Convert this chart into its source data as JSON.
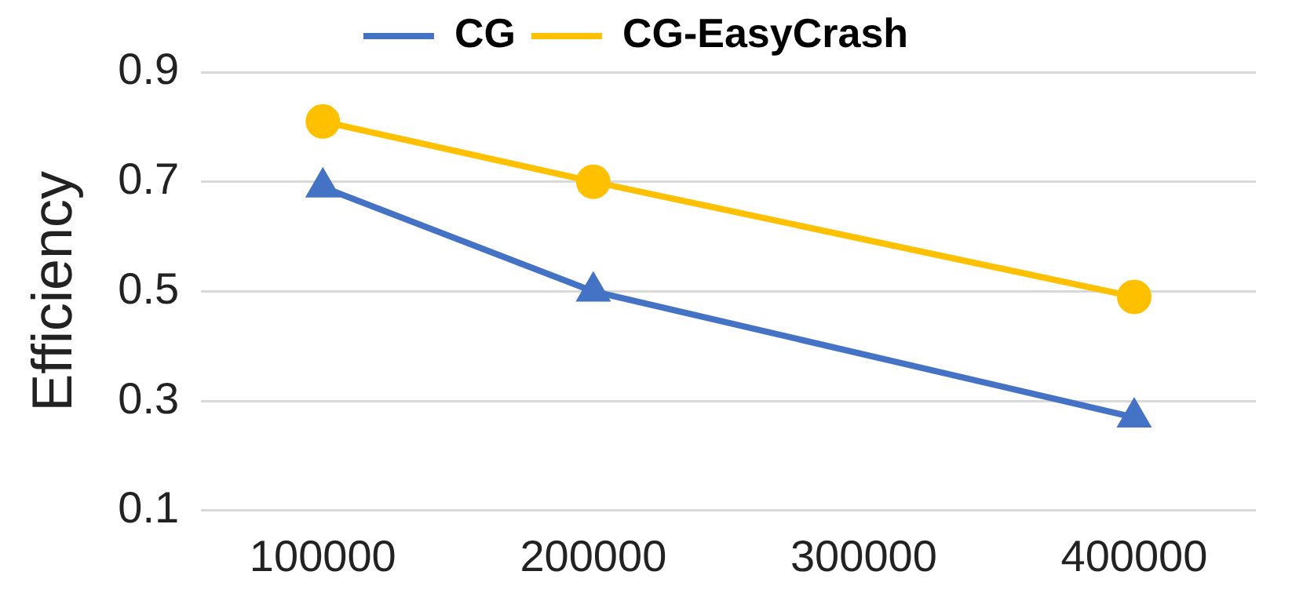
{
  "chart_data": {
    "type": "line",
    "ylabel": "Efficiency",
    "x": [
      100000,
      200000,
      400000
    ],
    "series": [
      {
        "name": "CG",
        "color": "#4472c4",
        "marker": "triangle",
        "values": [
          0.69,
          0.5,
          0.27
        ]
      },
      {
        "name": "CG-EasyCrash",
        "color": "#ffc000",
        "marker": "circle",
        "values": [
          0.81,
          0.7,
          0.49
        ]
      }
    ],
    "xlim": [
      55000,
      445000
    ],
    "xticks": [
      100000,
      200000,
      300000,
      400000
    ],
    "ylim": [
      0.1,
      0.9
    ],
    "yticks": [
      0.1,
      0.3,
      0.5,
      0.7,
      0.9
    ],
    "grid": "y",
    "legend": "top",
    "line_style": "solid"
  }
}
